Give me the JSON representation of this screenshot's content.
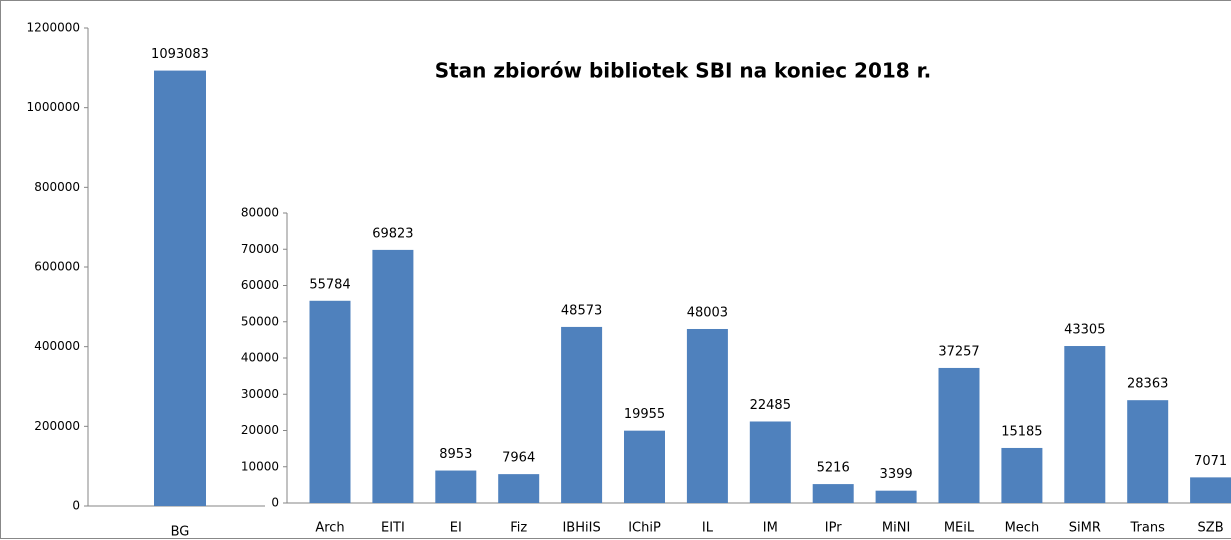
{
  "chart_data": [
    {
      "type": "bar",
      "categories": [
        "BG"
      ],
      "values": [
        1093083
      ],
      "color": "#4f81bd",
      "ylim": [
        0,
        1200000
      ],
      "yticks": [
        0,
        200000,
        400000,
        600000,
        800000,
        1000000,
        1200000
      ]
    },
    {
      "type": "bar",
      "title": "Stan zbiorów bibliotek SBI na koniec 2018 r.",
      "categories": [
        "Arch",
        "EITI",
        "EI",
        "Fiz",
        "IBHiIS",
        "IChiP",
        "IL",
        "IM",
        "IPr",
        "MiNI",
        "MEiL",
        "Mech",
        "SiMR",
        "Trans",
        "SZB"
      ],
      "values": [
        55784,
        69823,
        8953,
        7964,
        48573,
        19955,
        48003,
        22485,
        5216,
        3399,
        37257,
        15185,
        43305,
        28363,
        7071
      ],
      "color": "#4f81bd",
      "ylim": [
        0,
        80000
      ],
      "yticks": [
        0,
        10000,
        20000,
        30000,
        40000,
        50000,
        60000,
        70000,
        80000
      ]
    }
  ]
}
